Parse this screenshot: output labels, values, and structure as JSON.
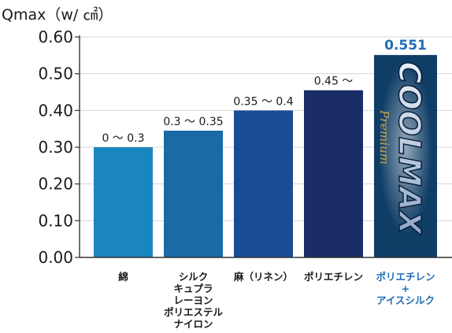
{
  "chart_data": {
    "type": "bar",
    "ylabel": "Qmax（w/ ㎠）",
    "ylim": [
      0,
      0.6
    ],
    "yticks": [
      "0.00",
      "0.10",
      "0.20",
      "0.30",
      "0.40",
      "0.50",
      "0.60"
    ],
    "grid": true,
    "categories": [
      "綿",
      "シルク\nキュプラ\nレーヨン\nポリエステル\nナイロン",
      "麻（リネン）",
      "ポリエチレン",
      "ポリエチレン\n+\nアイスシルク"
    ],
    "values": [
      0.3,
      0.345,
      0.4,
      0.455,
      0.551
    ],
    "data_labels": [
      "0 〜 0.3",
      "0.3 〜 0.35",
      "0.35 〜 0.4",
      "0.45 〜",
      "0.551"
    ],
    "colors": [
      "#1a86bf",
      "#1a6aa5",
      "#1a4c96",
      "#1a2d66",
      "#0f3d66"
    ],
    "highlight_label_color": "#1f6db5",
    "brand": {
      "logo_text": "COOLMAX",
      "logo_sub": "Premium"
    }
  }
}
